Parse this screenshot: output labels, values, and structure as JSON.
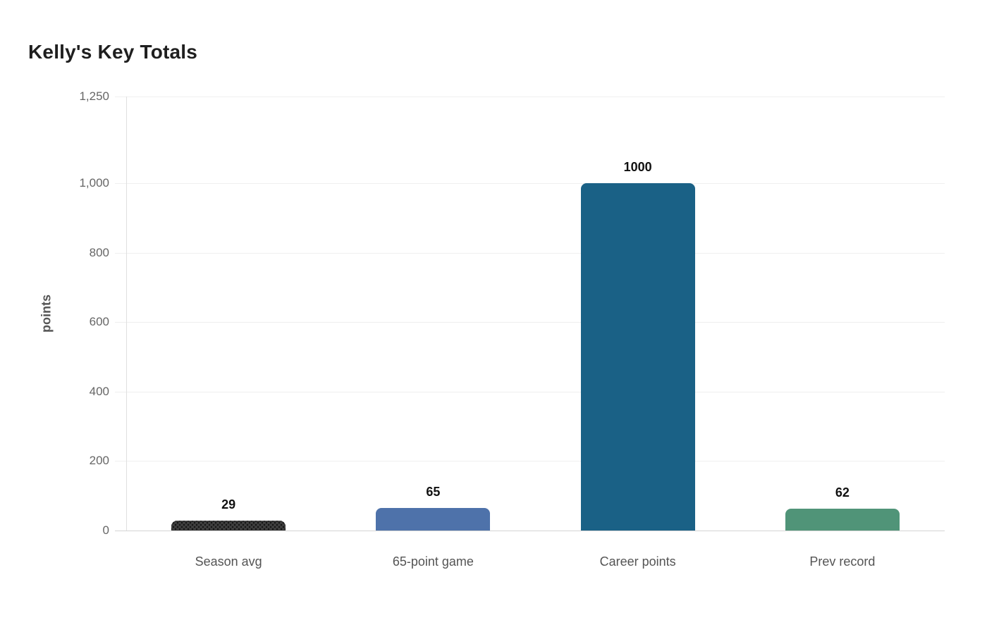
{
  "chart_data": {
    "type": "bar",
    "title": "Kelly's Key Totals",
    "subtitle": "",
    "xlabel": "",
    "ylabel": "points",
    "categories": [
      "Season avg",
      "65-point game",
      "Career points",
      "Prev record"
    ],
    "values": [
      29,
      65,
      1000,
      62
    ],
    "value_labels": [
      "29",
      "65",
      "1000",
      "62"
    ],
    "bar_colors": [
      "#3f3f3f",
      "#4e72aa",
      "#1a6186",
      "#509478"
    ],
    "bar_patterns": [
      "dots",
      "solid",
      "solid",
      "solid"
    ],
    "ylim": [
      0,
      1250
    ],
    "yticks": [
      0,
      200,
      400,
      600,
      800,
      1000,
      1250
    ],
    "ytick_labels": [
      "0",
      "200",
      "400",
      "600",
      "800",
      "1,000",
      "1,250"
    ],
    "grid": "horizontal-only",
    "legend": "none"
  },
  "colors": {
    "background": "#ffffff",
    "title": "#1f1f1f",
    "axis_title": "#555555",
    "tick_label": "#666666",
    "category_label": "#545454",
    "data_label": "#111111",
    "gridline": "#efefef",
    "axis_line": "#e0e0e0",
    "baseline": "#d4d4d4"
  }
}
